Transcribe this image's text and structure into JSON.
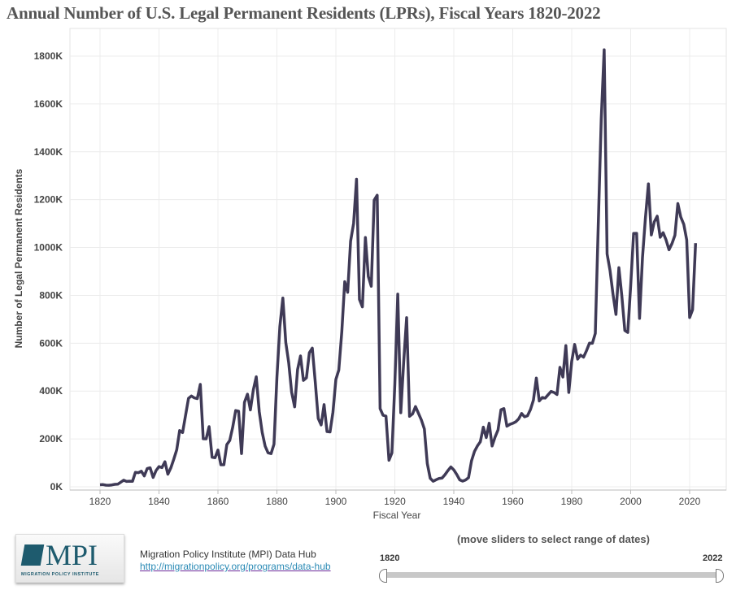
{
  "title": "Annual Number of U.S. Legal Permanent Residents (LPRs), Fiscal Years 1820-2022",
  "footer": {
    "logo_text": "MPI",
    "logo_subtext": "MIGRATION POLICY INSTITUTE",
    "source_name": "Migration Policy Institute (MPI) Data Hub",
    "source_link": "http://migrationpolicy.org/programs/data-hub"
  },
  "slider": {
    "hint": "(move sliders to select range of dates)",
    "min_label": "1820",
    "max_label": "2022",
    "range": [
      1820,
      2022
    ]
  },
  "chart_data": {
    "type": "line",
    "title": "Annual Number of U.S. Legal Permanent Residents (LPRs), Fiscal Years 1820-2022",
    "xlabel": "Fiscal Year",
    "ylabel": "Number of Legal Permanent Residents",
    "xlim": [
      1813,
      2032
    ],
    "ylim": [
      0,
      1900000
    ],
    "x_ticks": [
      1820,
      1840,
      1860,
      1880,
      1900,
      1920,
      1940,
      1960,
      1980,
      2000,
      2020
    ],
    "y_ticks": [
      0,
      200000,
      400000,
      600000,
      800000,
      1000000,
      1200000,
      1400000,
      1600000,
      1800000
    ],
    "y_tick_labels": [
      "0K",
      "200K",
      "400K",
      "600K",
      "800K",
      "1000K",
      "1200K",
      "1400K",
      "1600K",
      "1800K"
    ],
    "grid": true,
    "line_color": "#3f3a56",
    "x_start": 1820,
    "values": [
      8385,
      9127,
      6911,
      6354,
      7912,
      10199,
      10837,
      18875,
      27382,
      22520,
      23322,
      22633,
      60482,
      58640,
      65365,
      45374,
      76242,
      79340,
      38914,
      68069,
      84066,
      80289,
      104565,
      52496,
      78615,
      114371,
      154416,
      234968,
      226527,
      297024,
      369980,
      379466,
      371603,
      368645,
      427833,
      200877,
      200436,
      251306,
      123126,
      121282,
      153640,
      91918,
      91985,
      176282,
      193418,
      248120,
      318568,
      315722,
      138840,
      352768,
      387203,
      321350,
      404806,
      459803,
      313339,
      227498,
      169986,
      141857,
      138469,
      177826,
      457257,
      669431,
      788992,
      603322,
      518592,
      395346,
      334203,
      490109,
      546889,
      444427,
      455302,
      560319,
      579663,
      439730,
      285631,
      258536,
      343267,
      230832,
      229299,
      311715,
      448572,
      487918,
      648743,
      857046,
      812870,
      1026499,
      1100735,
      1285349,
      782870,
      751786,
      1041570,
      878587,
      838172,
      1197892,
      1218480,
      326700,
      298826,
      295403,
      110618,
      141132,
      430001,
      805228,
      309556,
      522919,
      706896,
      294314,
      304488,
      335175,
      307255,
      279678,
      241700,
      97139,
      35576,
      23068,
      29470,
      34956,
      36329,
      50244,
      67895,
      82998,
      70756,
      51776,
      28781,
      23725,
      28551,
      38119,
      108721,
      147292,
      170570,
      188317,
      249187,
      205717,
      265520,
      170434,
      208177,
      237790,
      321625,
      326867,
      253265,
      260686,
      265398,
      271344,
      283763,
      306260,
      292248,
      296697,
      323040,
      361972,
      454448,
      358579,
      373326,
      370478,
      384685,
      398515,
      393919,
      385378,
      499093,
      458755,
      589810,
      394244,
      524295,
      595014,
      533624,
      550052,
      541811,
      568149,
      600027,
      599889,
      641346,
      1090172,
      1535872,
      1826595,
      973445,
      903916,
      803993,
      720177,
      915560,
      797847,
      653206,
      644787,
      841002,
      1058902,
      1059356,
      703542,
      957883,
      1122257,
      1266129,
      1052415,
      1107126,
      1130818,
      1042625,
      1062040,
      1031631,
      990553,
      1016518,
      1051031,
      1183505,
      1127167,
      1096611,
      1031765,
      707362,
      740002,
      1018349
    ]
  }
}
